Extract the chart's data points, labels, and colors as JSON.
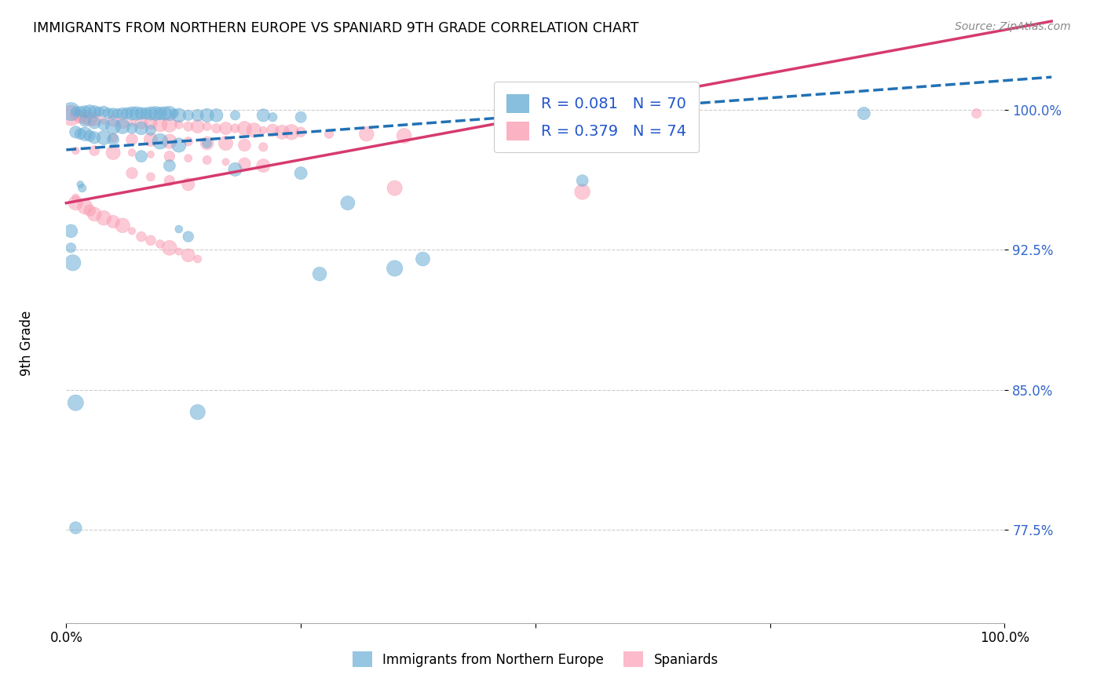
{
  "title": "IMMIGRANTS FROM NORTHERN EUROPE VS SPANIARD 9TH GRADE CORRELATION CHART",
  "source": "Source: ZipAtlas.com",
  "ylabel": "9th Grade",
  "y_ticks": [
    0.775,
    0.85,
    0.925,
    1.0
  ],
  "y_tick_labels": [
    "77.5%",
    "85.0%",
    "92.5%",
    "100.0%"
  ],
  "xlim": [
    0.0,
    1.0
  ],
  "ylim": [
    0.725,
    1.025
  ],
  "blue_R": 0.081,
  "blue_N": 70,
  "pink_R": 0.379,
  "pink_N": 74,
  "blue_color": "#6baed6",
  "pink_color": "#fa9fb5",
  "blue_line_color": "#2171b5",
  "pink_line_color": "#d63a6e",
  "legend_label_blue": "Immigrants from Northern Europe",
  "legend_label_pink": "Spaniards",
  "blue_line_x0": 0.0,
  "blue_line_y0": 0.9785,
  "blue_line_x1": 1.0,
  "blue_line_y1": 0.9975,
  "pink_line_x0": 0.0,
  "pink_line_y0": 0.95,
  "pink_line_x1": 1.0,
  "pink_line_y1": 0.9975,
  "blue_scatter": [
    [
      0.005,
      0.999
    ],
    [
      0.01,
      0.999
    ],
    [
      0.015,
      0.999
    ],
    [
      0.02,
      0.999
    ],
    [
      0.025,
      0.999
    ],
    [
      0.03,
      0.999
    ],
    [
      0.035,
      0.999
    ],
    [
      0.04,
      0.999
    ],
    [
      0.045,
      0.998
    ],
    [
      0.05,
      0.998
    ],
    [
      0.055,
      0.998
    ],
    [
      0.06,
      0.998
    ],
    [
      0.065,
      0.998
    ],
    [
      0.07,
      0.998
    ],
    [
      0.075,
      0.998
    ],
    [
      0.08,
      0.998
    ],
    [
      0.085,
      0.998
    ],
    [
      0.09,
      0.998
    ],
    [
      0.095,
      0.998
    ],
    [
      0.1,
      0.998
    ],
    [
      0.105,
      0.998
    ],
    [
      0.11,
      0.998
    ],
    [
      0.115,
      0.998
    ],
    [
      0.12,
      0.997
    ],
    [
      0.13,
      0.997
    ],
    [
      0.14,
      0.997
    ],
    [
      0.15,
      0.997
    ],
    [
      0.16,
      0.997
    ],
    [
      0.18,
      0.997
    ],
    [
      0.21,
      0.997
    ],
    [
      0.22,
      0.996
    ],
    [
      0.25,
      0.996
    ],
    [
      0.02,
      0.994
    ],
    [
      0.03,
      0.993
    ],
    [
      0.04,
      0.992
    ],
    [
      0.05,
      0.991
    ],
    [
      0.06,
      0.991
    ],
    [
      0.07,
      0.99
    ],
    [
      0.08,
      0.99
    ],
    [
      0.09,
      0.989
    ],
    [
      0.01,
      0.988
    ],
    [
      0.015,
      0.987
    ],
    [
      0.02,
      0.987
    ],
    [
      0.025,
      0.986
    ],
    [
      0.03,
      0.985
    ],
    [
      0.04,
      0.985
    ],
    [
      0.05,
      0.984
    ],
    [
      0.1,
      0.983
    ],
    [
      0.15,
      0.982
    ],
    [
      0.12,
      0.981
    ],
    [
      0.08,
      0.975
    ],
    [
      0.11,
      0.97
    ],
    [
      0.18,
      0.968
    ],
    [
      0.25,
      0.966
    ],
    [
      0.55,
      0.962
    ],
    [
      0.015,
      0.96
    ],
    [
      0.017,
      0.958
    ],
    [
      0.3,
      0.95
    ],
    [
      0.85,
      0.998
    ],
    [
      0.38,
      0.92
    ],
    [
      0.35,
      0.915
    ],
    [
      0.27,
      0.912
    ],
    [
      0.12,
      0.936
    ],
    [
      0.13,
      0.932
    ],
    [
      0.005,
      0.935
    ],
    [
      0.005,
      0.926
    ],
    [
      0.007,
      0.918
    ],
    [
      0.01,
      0.843
    ],
    [
      0.14,
      0.838
    ],
    [
      0.01,
      0.776
    ]
  ],
  "pink_scatter": [
    [
      0.005,
      0.997
    ],
    [
      0.01,
      0.997
    ],
    [
      0.015,
      0.996
    ],
    [
      0.02,
      0.996
    ],
    [
      0.025,
      0.995
    ],
    [
      0.03,
      0.995
    ],
    [
      0.04,
      0.994
    ],
    [
      0.05,
      0.994
    ],
    [
      0.06,
      0.993
    ],
    [
      0.07,
      0.993
    ],
    [
      0.08,
      0.993
    ],
    [
      0.09,
      0.993
    ],
    [
      0.1,
      0.992
    ],
    [
      0.11,
      0.992
    ],
    [
      0.12,
      0.992
    ],
    [
      0.13,
      0.991
    ],
    [
      0.14,
      0.991
    ],
    [
      0.15,
      0.991
    ],
    [
      0.16,
      0.99
    ],
    [
      0.17,
      0.99
    ],
    [
      0.18,
      0.99
    ],
    [
      0.19,
      0.99
    ],
    [
      0.2,
      0.989
    ],
    [
      0.21,
      0.989
    ],
    [
      0.22,
      0.989
    ],
    [
      0.23,
      0.988
    ],
    [
      0.24,
      0.988
    ],
    [
      0.25,
      0.988
    ],
    [
      0.28,
      0.987
    ],
    [
      0.32,
      0.987
    ],
    [
      0.36,
      0.986
    ],
    [
      0.05,
      0.985
    ],
    [
      0.07,
      0.984
    ],
    [
      0.09,
      0.984
    ],
    [
      0.11,
      0.983
    ],
    [
      0.13,
      0.983
    ],
    [
      0.15,
      0.982
    ],
    [
      0.17,
      0.982
    ],
    [
      0.19,
      0.981
    ],
    [
      0.21,
      0.98
    ],
    [
      0.01,
      0.978
    ],
    [
      0.03,
      0.978
    ],
    [
      0.05,
      0.977
    ],
    [
      0.07,
      0.977
    ],
    [
      0.09,
      0.976
    ],
    [
      0.11,
      0.975
    ],
    [
      0.13,
      0.974
    ],
    [
      0.15,
      0.973
    ],
    [
      0.17,
      0.972
    ],
    [
      0.19,
      0.971
    ],
    [
      0.21,
      0.97
    ],
    [
      0.07,
      0.966
    ],
    [
      0.09,
      0.964
    ],
    [
      0.11,
      0.962
    ],
    [
      0.13,
      0.96
    ],
    [
      0.35,
      0.958
    ],
    [
      0.55,
      0.956
    ],
    [
      0.97,
      0.998
    ],
    [
      0.01,
      0.953
    ],
    [
      0.01,
      0.95
    ],
    [
      0.02,
      0.948
    ],
    [
      0.025,
      0.946
    ],
    [
      0.03,
      0.944
    ],
    [
      0.04,
      0.942
    ],
    [
      0.05,
      0.94
    ],
    [
      0.06,
      0.938
    ],
    [
      0.07,
      0.935
    ],
    [
      0.08,
      0.932
    ],
    [
      0.09,
      0.93
    ],
    [
      0.1,
      0.928
    ],
    [
      0.11,
      0.926
    ],
    [
      0.12,
      0.924
    ],
    [
      0.13,
      0.922
    ],
    [
      0.14,
      0.92
    ]
  ]
}
